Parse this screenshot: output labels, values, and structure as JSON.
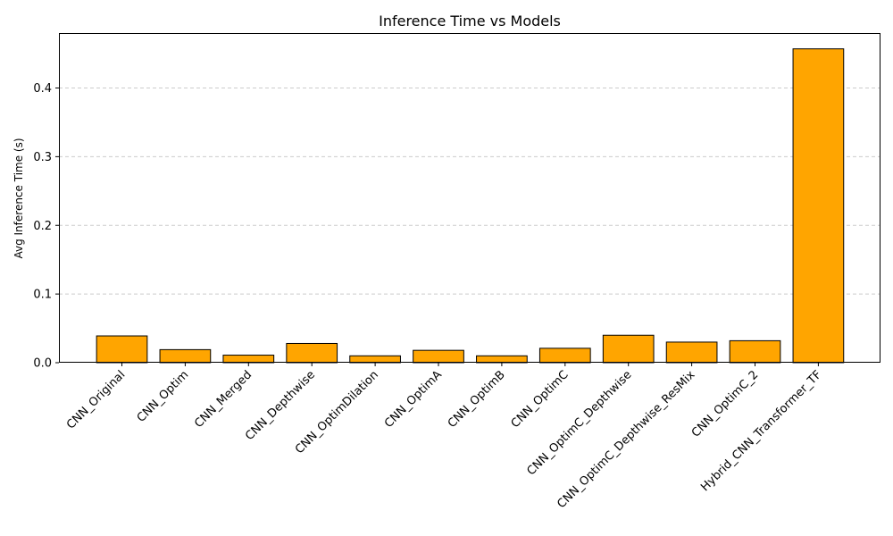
{
  "colors": {
    "bar_fill": "#FFA500",
    "bar_edge": "#000000",
    "grid": "#CCCCCC"
  },
  "chart_data": {
    "type": "bar",
    "title": "Inference Time vs Models",
    "xlabel": "",
    "ylabel": "Avg Inference Time (s)",
    "categories": [
      "CNN_Original",
      "CNN_Optim",
      "CNN_Merged",
      "CNN_Depthwise",
      "CNN_OptimDilation",
      "CNN_OptimA",
      "CNN_OptimB",
      "CNN_OptimC",
      "CNN_OptimC_Depthwise",
      "CNN_OptimC_Depthwise_ResMix",
      "CNN_OptimC_2",
      "Hybrid_CNN_Transformer_TF"
    ],
    "values": [
      0.039,
      0.019,
      0.011,
      0.028,
      0.01,
      0.018,
      0.01,
      0.021,
      0.04,
      0.03,
      0.032,
      0.457
    ],
    "ylim": [
      0,
      0.48
    ],
    "yticks": [
      0.0,
      0.1,
      0.2,
      0.3,
      0.4
    ],
    "ytick_labels": [
      "0.0",
      "0.1",
      "0.2",
      "0.3",
      "0.4"
    ],
    "grid": "y-dashed",
    "legend": "none"
  }
}
